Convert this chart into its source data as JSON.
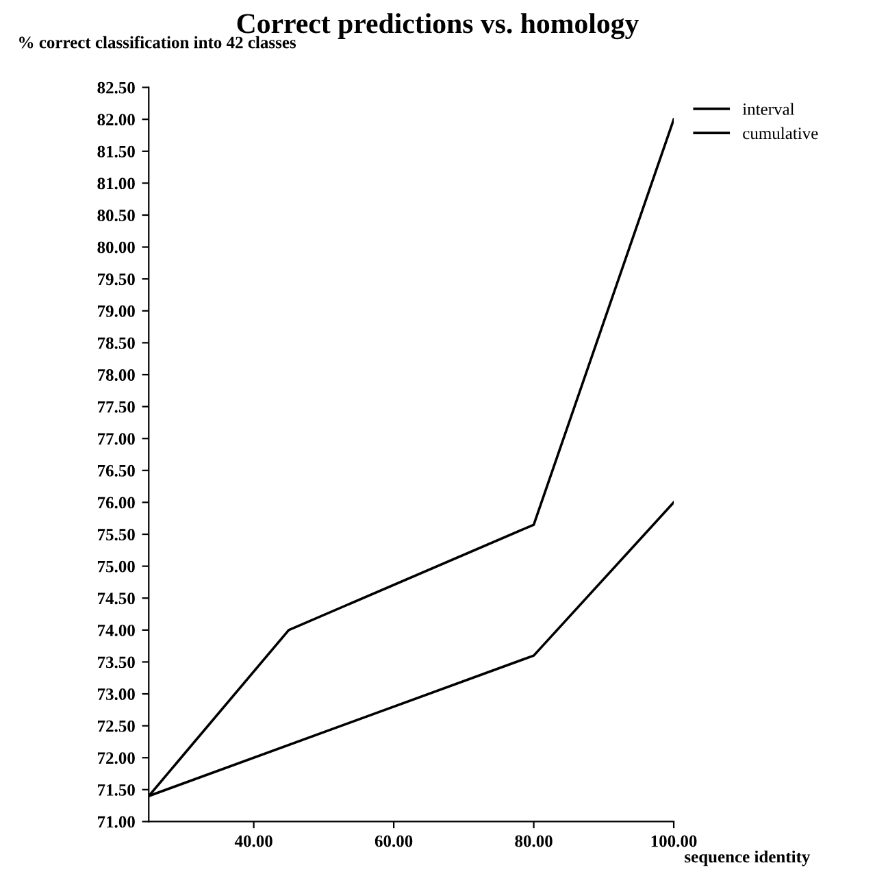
{
  "chart_data": {
    "type": "line",
    "title": "Correct predictions vs. homology",
    "ylabel": "% correct classification into 42 classes",
    "xlabel": "sequence identity",
    "legend": "top right",
    "grid": false,
    "marker": "none",
    "line_style": "solid",
    "xlim": [
      25,
      100
    ],
    "ylim": [
      71,
      82.5
    ],
    "xticks": [
      {
        "value": 40,
        "label": "40.00"
      },
      {
        "value": 60,
        "label": "60.00"
      },
      {
        "value": 80,
        "label": "80.00"
      },
      {
        "value": 100,
        "label": "100.00"
      }
    ],
    "yticks": [
      {
        "value": 71,
        "label": "71.00"
      },
      {
        "value": 71.5,
        "label": "71.50"
      },
      {
        "value": 72,
        "label": "72.00"
      },
      {
        "value": 72.5,
        "label": "72.50"
      },
      {
        "value": 73,
        "label": "73.00"
      },
      {
        "value": 73.5,
        "label": "73.50"
      },
      {
        "value": 74,
        "label": "74.00"
      },
      {
        "value": 74.5,
        "label": "74.50"
      },
      {
        "value": 75,
        "label": "75.00"
      },
      {
        "value": 75.5,
        "label": "75.50"
      },
      {
        "value": 76,
        "label": "76.00"
      },
      {
        "value": 76.5,
        "label": "76.50"
      },
      {
        "value": 77,
        "label": "77.00"
      },
      {
        "value": 77.5,
        "label": "77.50"
      },
      {
        "value": 78,
        "label": "78.00"
      },
      {
        "value": 78.5,
        "label": "78.50"
      },
      {
        "value": 79,
        "label": "79.00"
      },
      {
        "value": 79.5,
        "label": "79.50"
      },
      {
        "value": 80,
        "label": "80.00"
      },
      {
        "value": 80.5,
        "label": "80.50"
      },
      {
        "value": 81,
        "label": "81.00"
      },
      {
        "value": 81.5,
        "label": "81.50"
      },
      {
        "value": 82,
        "label": "82.00"
      },
      {
        "value": 82.5,
        "label": "82.50"
      }
    ],
    "series": [
      {
        "name": "interval",
        "color": "#000000",
        "x": [
          25,
          45,
          80,
          100
        ],
        "values": [
          71.4,
          74.0,
          75.65,
          82.0
        ]
      },
      {
        "name": "cumulative",
        "color": "#000000",
        "x": [
          25,
          80,
          100
        ],
        "values": [
          71.4,
          73.6,
          76.0
        ]
      }
    ]
  }
}
